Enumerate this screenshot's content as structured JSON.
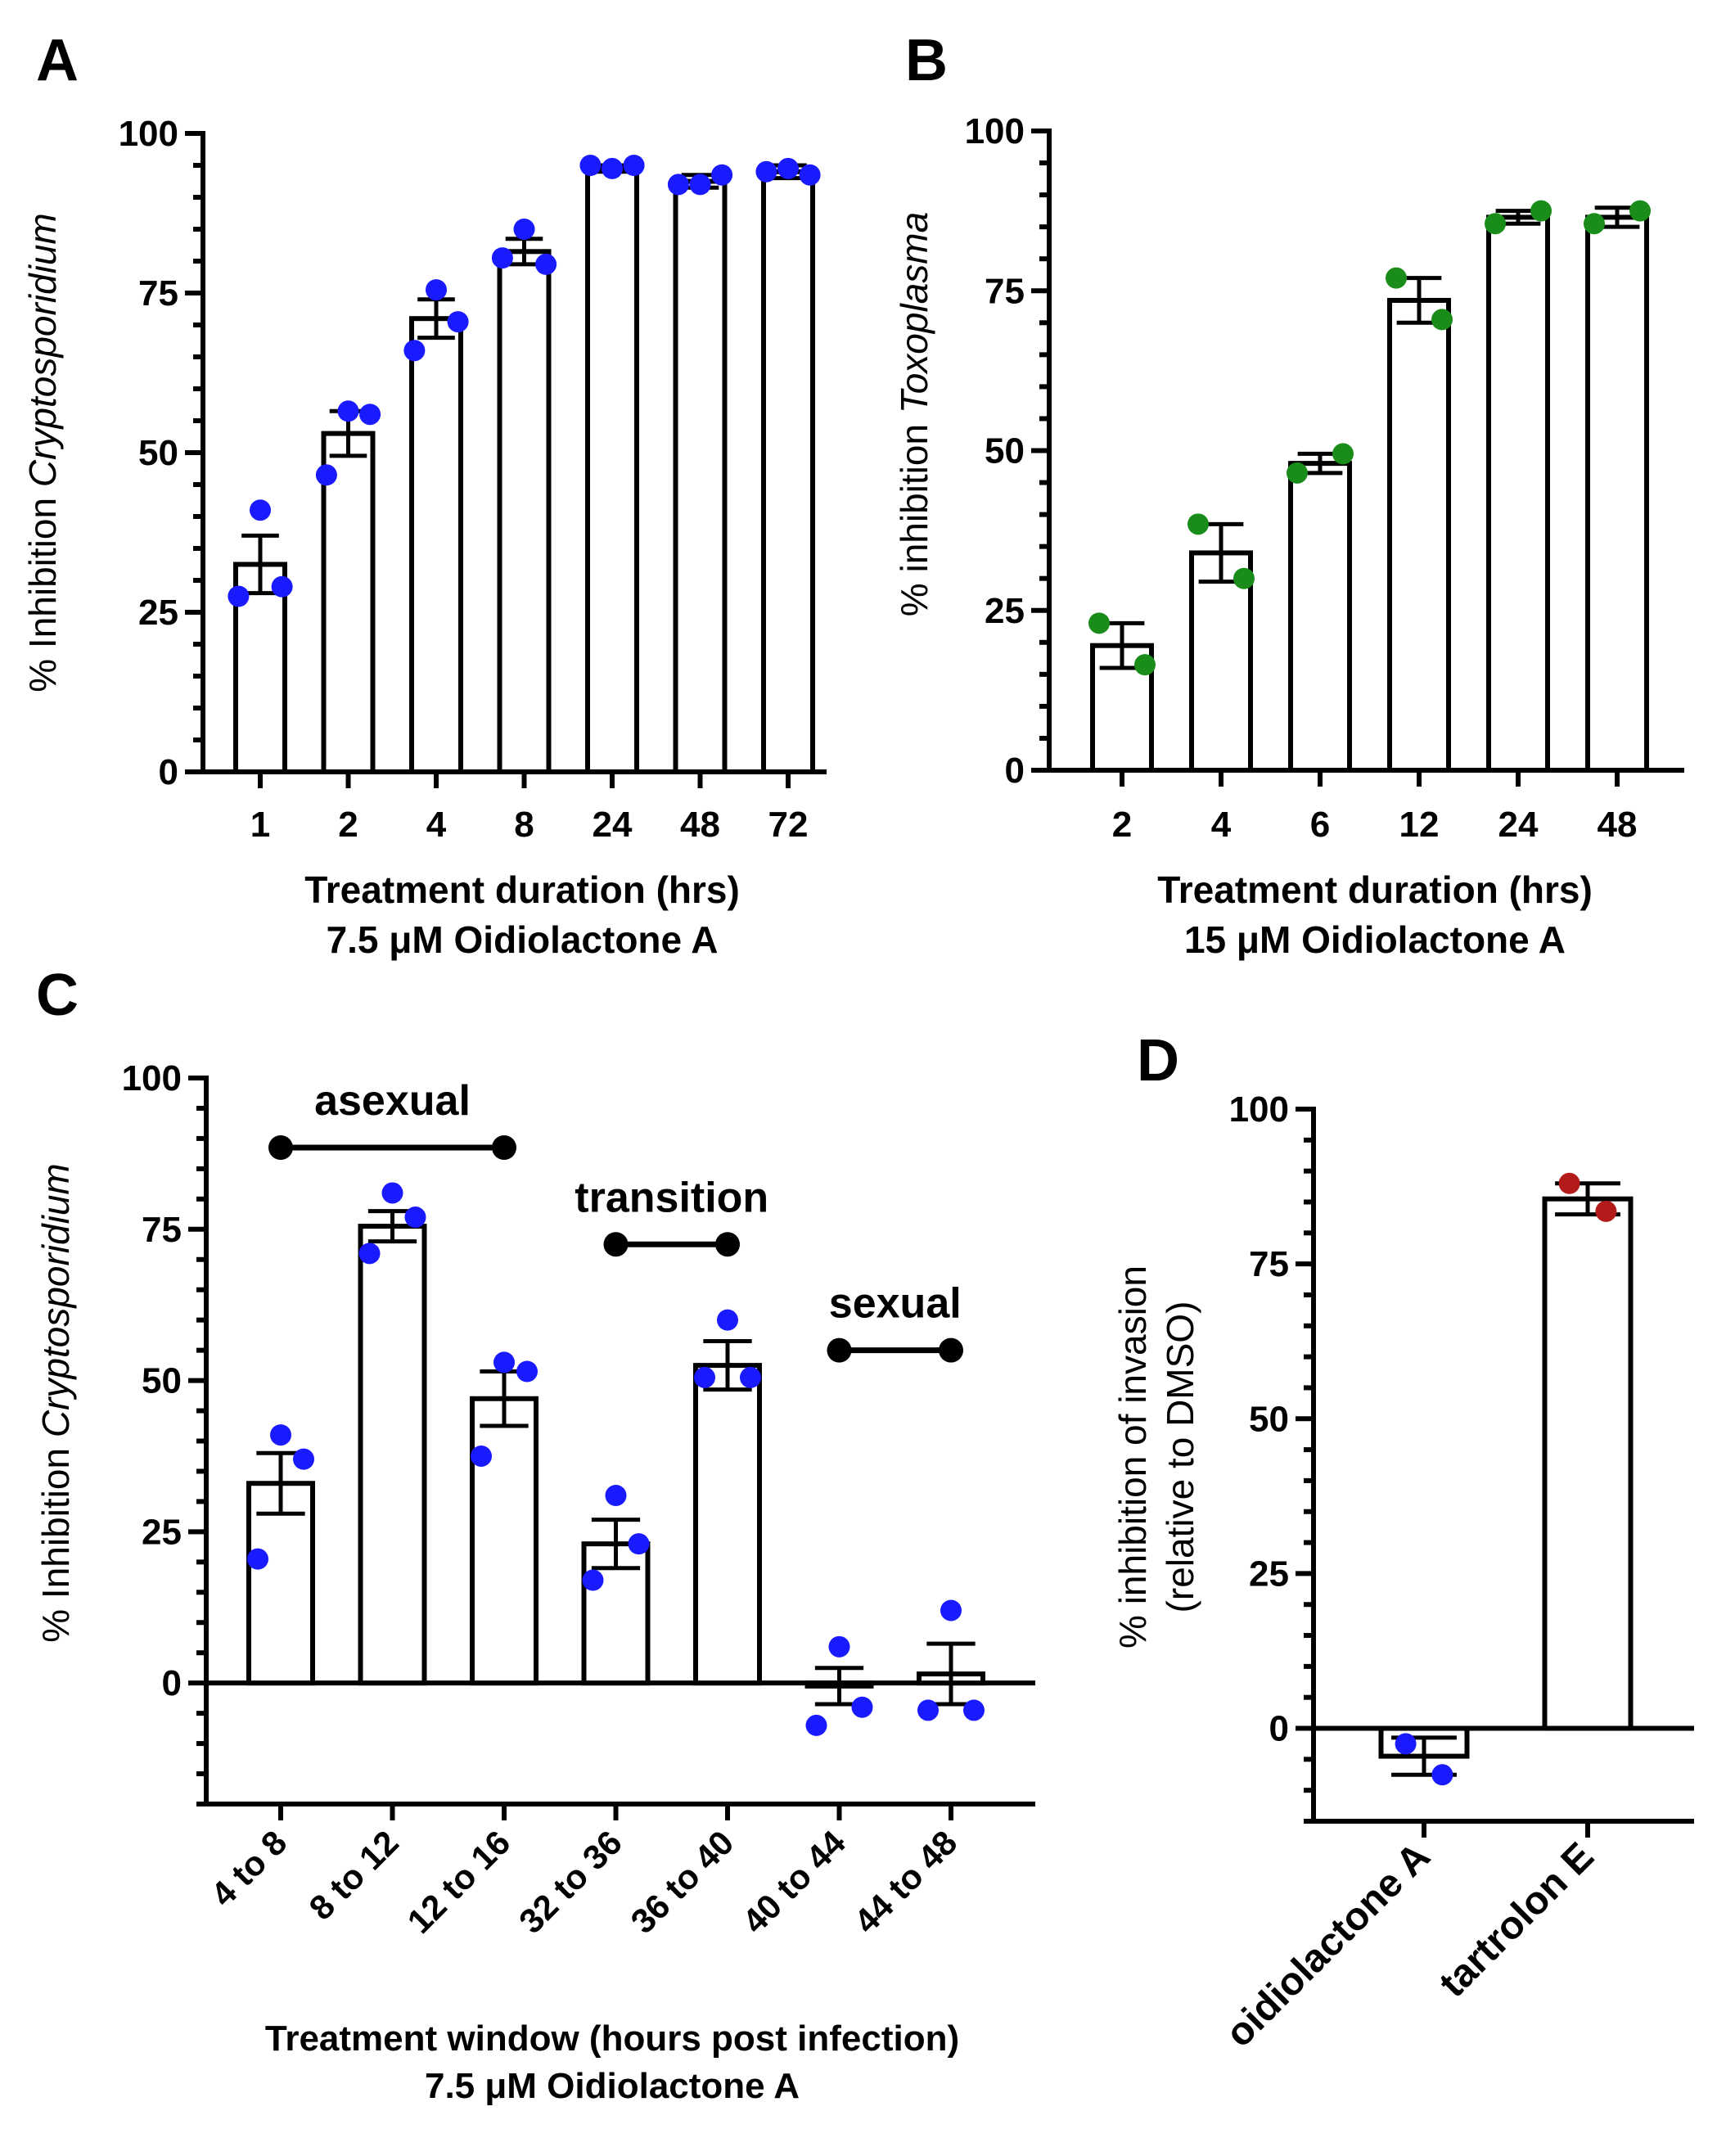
{
  "chart_data": [
    {
      "panel": "A",
      "type": "bar",
      "ylabel_prefix": "% Inhibition ",
      "ylabel_italic": "Cryptosporidium",
      "xlabel_lines": [
        "Treatment duration (hrs)",
        "7.5 μM Oidiolactone A"
      ],
      "categories": [
        "1",
        "2",
        "4",
        "8",
        "24",
        "48",
        "72"
      ],
      "values": [
        32.5,
        53,
        71,
        81.5,
        94.5,
        92.5,
        94
      ],
      "sem": [
        4.5,
        3.5,
        3,
        2,
        0.5,
        1,
        1
      ],
      "points": [
        [
          41,
          29,
          27.5
        ],
        [
          56.5,
          56,
          46.5
        ],
        [
          75.5,
          70.5,
          66
        ],
        [
          85,
          79.5,
          80.5
        ],
        [
          94.5,
          95,
          95
        ],
        [
          92,
          93.5,
          92
        ],
        [
          94.5,
          93.5,
          94
        ]
      ],
      "point_color": "#1a1aff",
      "ylim": [
        0,
        100
      ],
      "yticks": [
        0,
        25,
        50,
        75,
        100
      ],
      "ytick_labels": [
        "0",
        "25",
        "50",
        "75",
        "100"
      ]
    },
    {
      "panel": "B",
      "type": "bar",
      "ylabel_prefix": "% inhibition ",
      "ylabel_italic": "Toxoplasma",
      "xlabel_lines": [
        "Treatment duration (hrs)",
        "15 μM Oidiolactone A"
      ],
      "categories": [
        "2",
        "4",
        "6",
        "12",
        "24",
        "48"
      ],
      "values": [
        19.5,
        34,
        48,
        73.5,
        86.5,
        86.5
      ],
      "sem": [
        3.5,
        4.5,
        1.5,
        3.5,
        1,
        1.5
      ],
      "points": [
        [
          23,
          16.5
        ],
        [
          38.5,
          30
        ],
        [
          46.5,
          49.5
        ],
        [
          77,
          70.5
        ],
        [
          85.5,
          87.5
        ],
        [
          85.5,
          87.5
        ]
      ],
      "point_color": "#1a8c1a",
      "ylim": [
        0,
        100
      ],
      "yticks": [
        0,
        25,
        50,
        75,
        100
      ],
      "ytick_labels": [
        "0",
        "25",
        "50",
        "75",
        "100"
      ]
    },
    {
      "panel": "C",
      "type": "bar",
      "ylabel_prefix": "% Inhibition ",
      "ylabel_italic": "Cryptosporidium",
      "xlabel_lines": [
        "Treatment window (hours post infection)",
        "7.5 μM Oidiolactone A"
      ],
      "categories": [
        "4 to 8",
        "8 to 12",
        "12 to 16",
        "32 to 36",
        "36 to 40",
        "40 to 44",
        "44 to 48"
      ],
      "values": [
        33,
        75.5,
        47,
        23,
        52.5,
        -0.5,
        1.5
      ],
      "sem": [
        5,
        2.5,
        4.5,
        4,
        4,
        3,
        5
      ],
      "points": [
        [
          41,
          37,
          20.5
        ],
        [
          81,
          77,
          71
        ],
        [
          53,
          51.5,
          37.5
        ],
        [
          31,
          23,
          17
        ],
        [
          60,
          50.5,
          50.5
        ],
        [
          6,
          -4,
          -7
        ],
        [
          12,
          -4.5,
          -4.5
        ]
      ],
      "point_color": "#1a1aff",
      "ylim": [
        -20,
        100
      ],
      "yticks": [
        0,
        25,
        50,
        75,
        100
      ],
      "ytick_labels": [
        "0",
        "25",
        "50",
        "75",
        "100"
      ],
      "phases": [
        {
          "label": "asexual",
          "from": 0,
          "to": 2,
          "level": 88.5
        },
        {
          "label": "transition",
          "from": 3,
          "to": 4,
          "level": 72.5
        },
        {
          "label": "sexual",
          "from": 5,
          "to": 6,
          "level": 55
        }
      ]
    },
    {
      "panel": "D",
      "type": "bar",
      "ylabel_lines": [
        "% inhibition of invasion",
        "(relative to DMSO)"
      ],
      "categories": [
        "oidiolactone A",
        "tartrolon E"
      ],
      "values": [
        -4.5,
        85.5
      ],
      "sem": [
        3,
        2.5
      ],
      "points": [
        [
          -2.5,
          -7.5
        ],
        [
          88,
          83.5
        ]
      ],
      "point_colors": [
        "#1a1aff",
        "#b31a1a"
      ],
      "ylim": [
        -15,
        100
      ],
      "yticks": [
        0,
        25,
        50,
        75,
        100
      ],
      "ytick_labels": [
        "0",
        "25",
        "50",
        "75",
        "100"
      ]
    }
  ]
}
